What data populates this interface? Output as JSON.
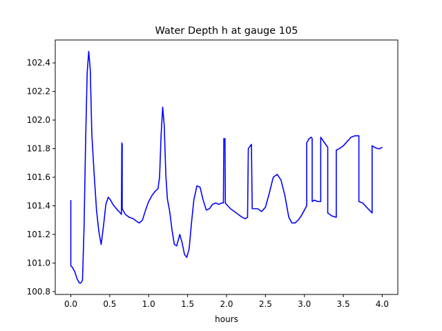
{
  "chart_data": {
    "type": "line",
    "title": "Water Depth h at gauge 105",
    "xlabel": "hours",
    "ylabel": "",
    "xlim": [
      -0.2,
      4.2
    ],
    "ylim": [
      100.78,
      102.56
    ],
    "xticks": [
      0.0,
      0.5,
      1.0,
      1.5,
      2.0,
      2.5,
      3.0,
      3.5,
      4.0
    ],
    "xtick_labels": [
      "0.0",
      "0.5",
      "1.0",
      "1.5",
      "2.0",
      "2.5",
      "3.0",
      "3.5",
      "4.0"
    ],
    "yticks": [
      100.8,
      101.0,
      101.2,
      101.4,
      101.6,
      101.8,
      102.0,
      102.2,
      102.4
    ],
    "ytick_labels": [
      "100.8",
      "101.0",
      "101.2",
      "101.4",
      "101.6",
      "101.8",
      "102.0",
      "102.2",
      "102.4"
    ],
    "grid": false,
    "series": [
      {
        "color": "#0000ff",
        "x": [
          0.0,
          0.0,
          0.02,
          0.05,
          0.08,
          0.11,
          0.13,
          0.15,
          0.17,
          0.19,
          0.21,
          0.23,
          0.25,
          0.27,
          0.3,
          0.33,
          0.36,
          0.39,
          0.42,
          0.45,
          0.48,
          0.51,
          0.54,
          0.57,
          0.6,
          0.62,
          0.65,
          0.655,
          0.66,
          0.66,
          0.7,
          0.75,
          0.8,
          0.85,
          0.88,
          0.92,
          0.96,
          1.0,
          1.04,
          1.08,
          1.1,
          1.12,
          1.14,
          1.16,
          1.18,
          1.2,
          1.22,
          1.24,
          1.27,
          1.3,
          1.33,
          1.36,
          1.4,
          1.43,
          1.46,
          1.49,
          1.52,
          1.55,
          1.58,
          1.62,
          1.66,
          1.7,
          1.74,
          1.78,
          1.82,
          1.86,
          1.9,
          1.94,
          1.96,
          1.965,
          1.98,
          1.985,
          2.0,
          2.05,
          2.1,
          2.15,
          2.2,
          2.24,
          2.27,
          2.28,
          2.32,
          2.33,
          2.35,
          2.4,
          2.45,
          2.5,
          2.55,
          2.6,
          2.65,
          2.7,
          2.75,
          2.8,
          2.84,
          2.88,
          2.92,
          2.96,
          3.0,
          3.03,
          3.03,
          3.06,
          3.09,
          3.1,
          3.1,
          3.13,
          3.17,
          3.2,
          3.21,
          3.21,
          3.26,
          3.3,
          3.3,
          3.35,
          3.41,
          3.41,
          3.45,
          3.5,
          3.55,
          3.6,
          3.65,
          3.7,
          3.7,
          3.75,
          3.8,
          3.87,
          3.87,
          3.9,
          3.94,
          3.97,
          4.0
        ],
        "y": [
          101.44,
          100.98,
          100.97,
          100.94,
          100.89,
          100.86,
          100.86,
          100.88,
          101.25,
          101.85,
          102.33,
          102.48,
          102.35,
          101.9,
          101.62,
          101.37,
          101.22,
          101.13,
          101.26,
          101.41,
          101.46,
          101.44,
          101.41,
          101.39,
          101.37,
          101.36,
          101.34,
          101.84,
          101.83,
          101.38,
          101.34,
          101.32,
          101.31,
          101.29,
          101.28,
          101.3,
          101.37,
          101.43,
          101.47,
          101.5,
          101.51,
          101.52,
          101.6,
          101.9,
          102.09,
          101.96,
          101.62,
          101.45,
          101.36,
          101.23,
          101.13,
          101.12,
          101.2,
          101.14,
          101.06,
          101.04,
          101.1,
          101.28,
          101.44,
          101.54,
          101.53,
          101.44,
          101.37,
          101.38,
          101.41,
          101.42,
          101.41,
          101.42,
          101.42,
          101.87,
          101.87,
          101.42,
          101.41,
          101.38,
          101.36,
          101.34,
          101.32,
          101.31,
          101.32,
          101.8,
          101.83,
          101.38,
          101.38,
          101.38,
          101.36,
          101.39,
          101.49,
          101.6,
          101.62,
          101.58,
          101.47,
          101.32,
          101.28,
          101.28,
          101.3,
          101.33,
          101.37,
          101.4,
          101.84,
          101.87,
          101.88,
          101.87,
          101.43,
          101.44,
          101.43,
          101.43,
          101.43,
          101.88,
          101.84,
          101.81,
          101.35,
          101.33,
          101.32,
          101.79,
          101.8,
          101.82,
          101.85,
          101.88,
          101.89,
          101.89,
          101.43,
          101.42,
          101.39,
          101.35,
          101.82,
          101.81,
          101.8,
          101.8,
          101.81
        ]
      }
    ]
  }
}
